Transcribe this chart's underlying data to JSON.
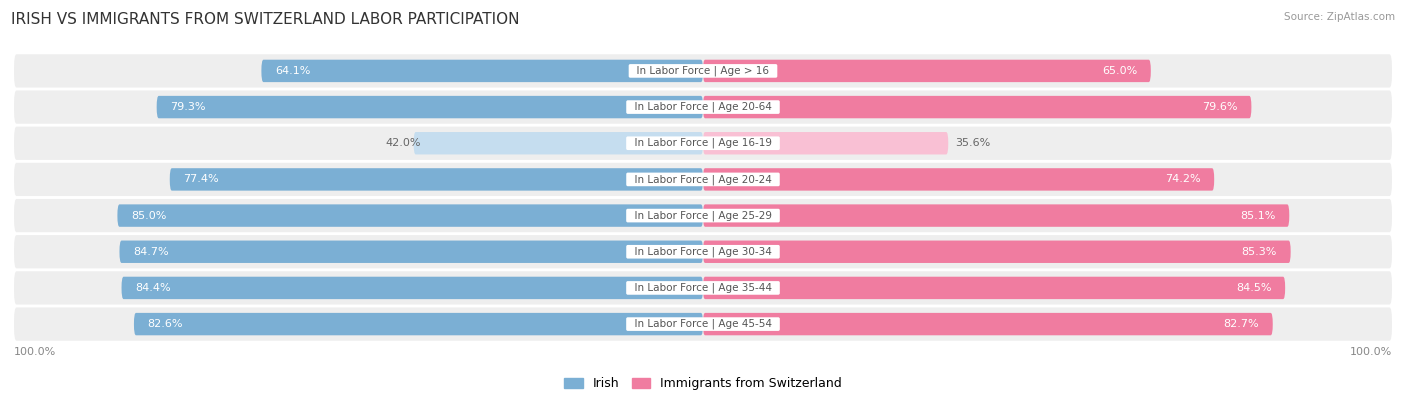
{
  "title": "IRISH VS IMMIGRANTS FROM SWITZERLAND LABOR PARTICIPATION",
  "source": "Source: ZipAtlas.com",
  "categories": [
    "In Labor Force | Age > 16",
    "In Labor Force | Age 20-64",
    "In Labor Force | Age 16-19",
    "In Labor Force | Age 20-24",
    "In Labor Force | Age 25-29",
    "In Labor Force | Age 30-34",
    "In Labor Force | Age 35-44",
    "In Labor Force | Age 45-54"
  ],
  "irish_values": [
    64.1,
    79.3,
    42.0,
    77.4,
    85.0,
    84.7,
    84.4,
    82.6
  ],
  "swiss_values": [
    65.0,
    79.6,
    35.6,
    74.2,
    85.1,
    85.3,
    84.5,
    82.7
  ],
  "irish_color": "#7bafd4",
  "swiss_color": "#f07ca0",
  "irish_color_light": "#c5ddef",
  "swiss_color_light": "#f9c0d4",
  "irish_label": "Irish",
  "swiss_label": "Immigrants from Switzerland",
  "max_value": 100.0,
  "bar_height": 0.62,
  "title_fontsize": 11,
  "label_fontsize": 7.5,
  "value_fontsize": 8,
  "legend_fontsize": 9,
  "light_threshold": 60
}
